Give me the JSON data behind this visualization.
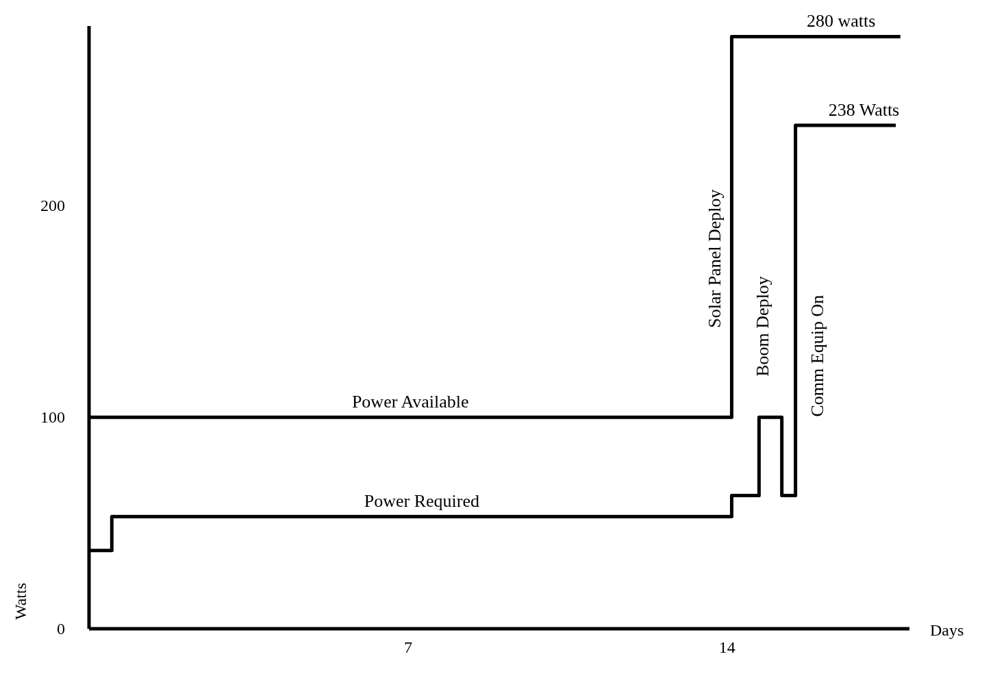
{
  "chart_data": {
    "type": "step",
    "xlabel": "Days",
    "ylabel": "Watts",
    "xlim": [
      0,
      18
    ],
    "ylim": [
      0,
      285
    ],
    "xticks": [
      7,
      14
    ],
    "yticks": [
      0,
      100,
      200
    ],
    "grid": false,
    "legend": false,
    "series": [
      {
        "name": "Power Available",
        "color": "#000000",
        "x": [
          0,
          14.1,
          17.8
        ],
        "values": [
          100,
          280,
          280
        ]
      },
      {
        "name": "Power Required",
        "color": "#000000",
        "x": [
          0,
          0.5,
          14.1,
          14.7,
          15.2,
          15.5,
          17.7
        ],
        "values": [
          37,
          53,
          63,
          100,
          63,
          238,
          238
        ]
      }
    ],
    "annotations": [
      {
        "text": "280 watts",
        "x": 16.5,
        "y": 280
      },
      {
        "text": "238 Watts",
        "x": 17,
        "y": 238
      },
      "Solar Panel Deploy",
      "Boom Deploy",
      "Comm Equip On"
    ]
  }
}
